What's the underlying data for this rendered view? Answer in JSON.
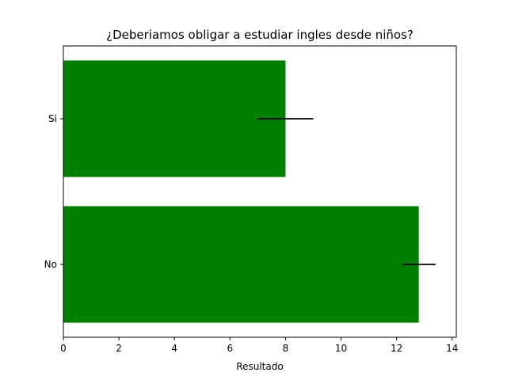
{
  "chart_data": {
    "type": "bar",
    "orientation": "horizontal",
    "title": "¿Deberiamos obligar a estudiar ingles desde niños?",
    "xlabel": "Resultado",
    "ylabel": "",
    "categories": [
      "No",
      "Si"
    ],
    "values": [
      12.8,
      8.0
    ],
    "errors": [
      0.6,
      1.0
    ],
    "xlim": [
      0,
      14.15
    ],
    "xticks": [
      0,
      2,
      4,
      6,
      8,
      10,
      12,
      14
    ],
    "bar_color": "#008000",
    "error_color": "#000000",
    "grid": false
  }
}
